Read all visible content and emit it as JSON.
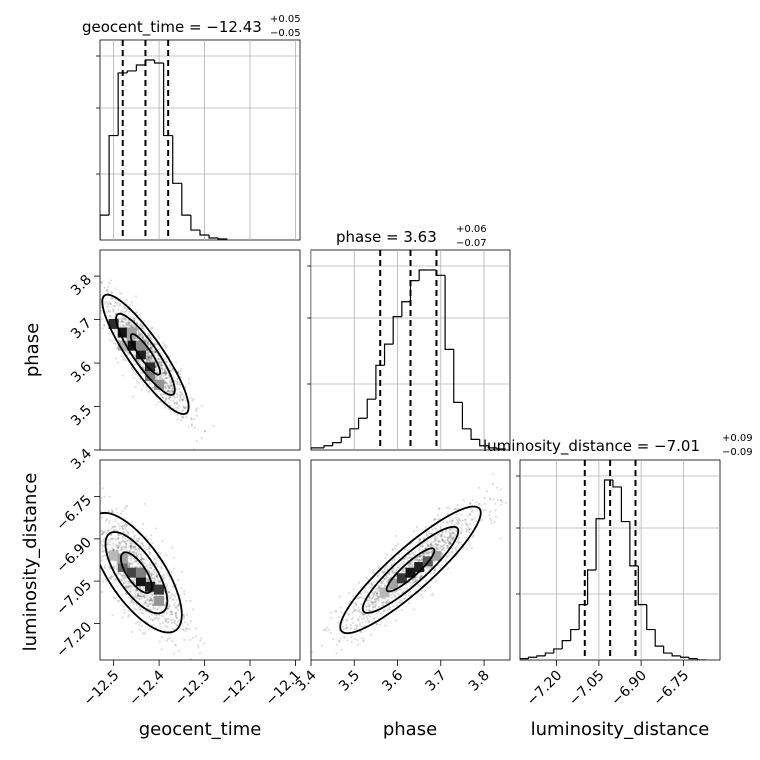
{
  "chart_data": {
    "type": "corner",
    "parameters": [
      "geocent_time",
      "phase",
      "luminosity_distance"
    ],
    "axis_labels": {
      "geocent_time": "geocent_time",
      "phase": "phase",
      "luminosity_distance": "luminosity_distance"
    },
    "ranges": {
      "geocent_time": [
        -12.53,
        -12.09
      ],
      "phase": [
        3.4,
        3.86
      ],
      "luminosity_distance": [
        -7.33,
        -6.62
      ]
    },
    "ticks": {
      "geocent_time": [
        -12.5,
        -12.4,
        -12.3,
        -12.2,
        -12.1
      ],
      "phase": [
        3.4,
        3.5,
        3.6,
        3.7,
        3.8
      ],
      "luminosity_distance": [
        -7.2,
        -7.05,
        -6.9,
        -6.75
      ]
    },
    "tick_labels": {
      "geocent_time": [
        "−12.5",
        "−12.4",
        "−12.3",
        "−12.2",
        "−12.1"
      ],
      "phase": [
        "3.4",
        "3.5",
        "3.6",
        "3.7",
        "3.8"
      ],
      "luminosity_distance": [
        "−7.20",
        "−7.05",
        "−6.90",
        "−6.75"
      ]
    },
    "marginals": {
      "geocent_time": {
        "title_main": "geocent_time = −12.43",
        "title_plus": "+0.05",
        "title_minus": "−0.05",
        "median": -12.43,
        "lower": -12.48,
        "upper": -12.38,
        "bin_edges": [
          -12.53,
          -12.51,
          -12.49,
          -12.47,
          -12.45,
          -12.43,
          -12.41,
          -12.39,
          -12.37,
          -12.35,
          -12.33,
          -12.31,
          -12.29,
          -12.27,
          -12.25
        ],
        "counts": [
          25,
          105,
          168,
          170,
          176,
          181,
          178,
          105,
          57,
          25,
          10,
          5,
          2,
          1
        ]
      },
      "phase": {
        "title_main": "phase = 3.63",
        "title_plus": "+0.06",
        "title_minus": "−0.07",
        "median": 3.63,
        "lower": 3.56,
        "upper": 3.69,
        "bin_edges": [
          3.4,
          3.43,
          3.45,
          3.47,
          3.49,
          3.51,
          3.53,
          3.55,
          3.57,
          3.59,
          3.61,
          3.63,
          3.65,
          3.67,
          3.69,
          3.71,
          3.73,
          3.75,
          3.77,
          3.79,
          3.81,
          3.83,
          3.85
        ],
        "counts": [
          2,
          4,
          7,
          12,
          20,
          30,
          48,
          80,
          100,
          126,
          140,
          160,
          170,
          170,
          165,
          95,
          45,
          20,
          10,
          4,
          2,
          1
        ]
      },
      "luminosity_distance": {
        "title_main": "luminosity_distance = −7.01",
        "title_plus": "+0.09",
        "title_minus": "−0.09",
        "median": -7.01,
        "lower": -7.1,
        "upper": -6.92,
        "bin_edges": [
          -7.33,
          -7.3,
          -7.27,
          -7.24,
          -7.21,
          -7.18,
          -7.15,
          -7.12,
          -7.09,
          -7.06,
          -7.03,
          -7.0,
          -6.97,
          -6.94,
          -6.91,
          -6.88,
          -6.85,
          -6.82,
          -6.79,
          -6.76,
          -6.73,
          -6.7,
          -6.67
        ],
        "counts": [
          1,
          2,
          3,
          5,
          8,
          14,
          22,
          40,
          65,
          102,
          130,
          125,
          100,
          68,
          40,
          22,
          10,
          5,
          3,
          2,
          1,
          0
        ]
      }
    },
    "joint": [
      {
        "x": "geocent_time",
        "y": "phase",
        "center": [
          -12.43,
          3.62
        ],
        "sd": [
          0.038,
          0.055
        ],
        "corr": -0.88,
        "density_cells": [
          {
            "x": -12.5,
            "y": 3.69,
            "w": 0.9
          },
          {
            "x": -12.48,
            "y": 3.67,
            "w": 1.0
          },
          {
            "x": -12.46,
            "y": 3.64,
            "w": 1.0
          },
          {
            "x": -12.44,
            "y": 3.62,
            "w": 0.95
          },
          {
            "x": -12.42,
            "y": 3.59,
            "w": 0.9
          },
          {
            "x": -12.42,
            "y": 3.57,
            "w": 0.55
          },
          {
            "x": -12.46,
            "y": 3.67,
            "w": 0.4
          },
          {
            "x": -12.44,
            "y": 3.64,
            "w": 0.5
          },
          {
            "x": -12.48,
            "y": 3.64,
            "w": 0.35
          },
          {
            "x": -12.4,
            "y": 3.55,
            "w": 0.45
          }
        ]
      },
      {
        "x": "geocent_time",
        "y": "luminosity_distance",
        "center": [
          -12.45,
          -7.02
        ],
        "sd": [
          0.04,
          0.085
        ],
        "corr": -0.7,
        "density_cells": [
          {
            "x": -12.5,
            "y": -6.96,
            "w": 0.3
          },
          {
            "x": -12.48,
            "y": -7.0,
            "w": 0.65
          },
          {
            "x": -12.46,
            "y": -7.02,
            "w": 0.8
          },
          {
            "x": -12.44,
            "y": -7.05,
            "w": 1.0
          },
          {
            "x": -12.42,
            "y": -7.07,
            "w": 0.95
          },
          {
            "x": -12.4,
            "y": -7.08,
            "w": 0.85
          },
          {
            "x": -12.48,
            "y": -6.97,
            "w": 0.4
          },
          {
            "x": -12.44,
            "y": -7.02,
            "w": 0.55
          },
          {
            "x": -12.4,
            "y": -7.12,
            "w": 0.45
          }
        ]
      },
      {
        "x": "phase",
        "y": "luminosity_distance",
        "center": [
          3.63,
          -7.01
        ],
        "sd": [
          0.065,
          0.09
        ],
        "corr": 0.9,
        "density_cells": [
          {
            "x": 3.59,
            "y": -7.06,
            "w": 0.4
          },
          {
            "x": 3.61,
            "y": -7.04,
            "w": 0.85
          },
          {
            "x": 3.63,
            "y": -7.02,
            "w": 1.0
          },
          {
            "x": 3.65,
            "y": -7.0,
            "w": 0.95
          },
          {
            "x": 3.67,
            "y": -6.98,
            "w": 0.7
          },
          {
            "x": 3.69,
            "y": -6.96,
            "w": 0.4
          },
          {
            "x": 3.57,
            "y": -7.09,
            "w": 0.3
          }
        ]
      }
    ]
  }
}
